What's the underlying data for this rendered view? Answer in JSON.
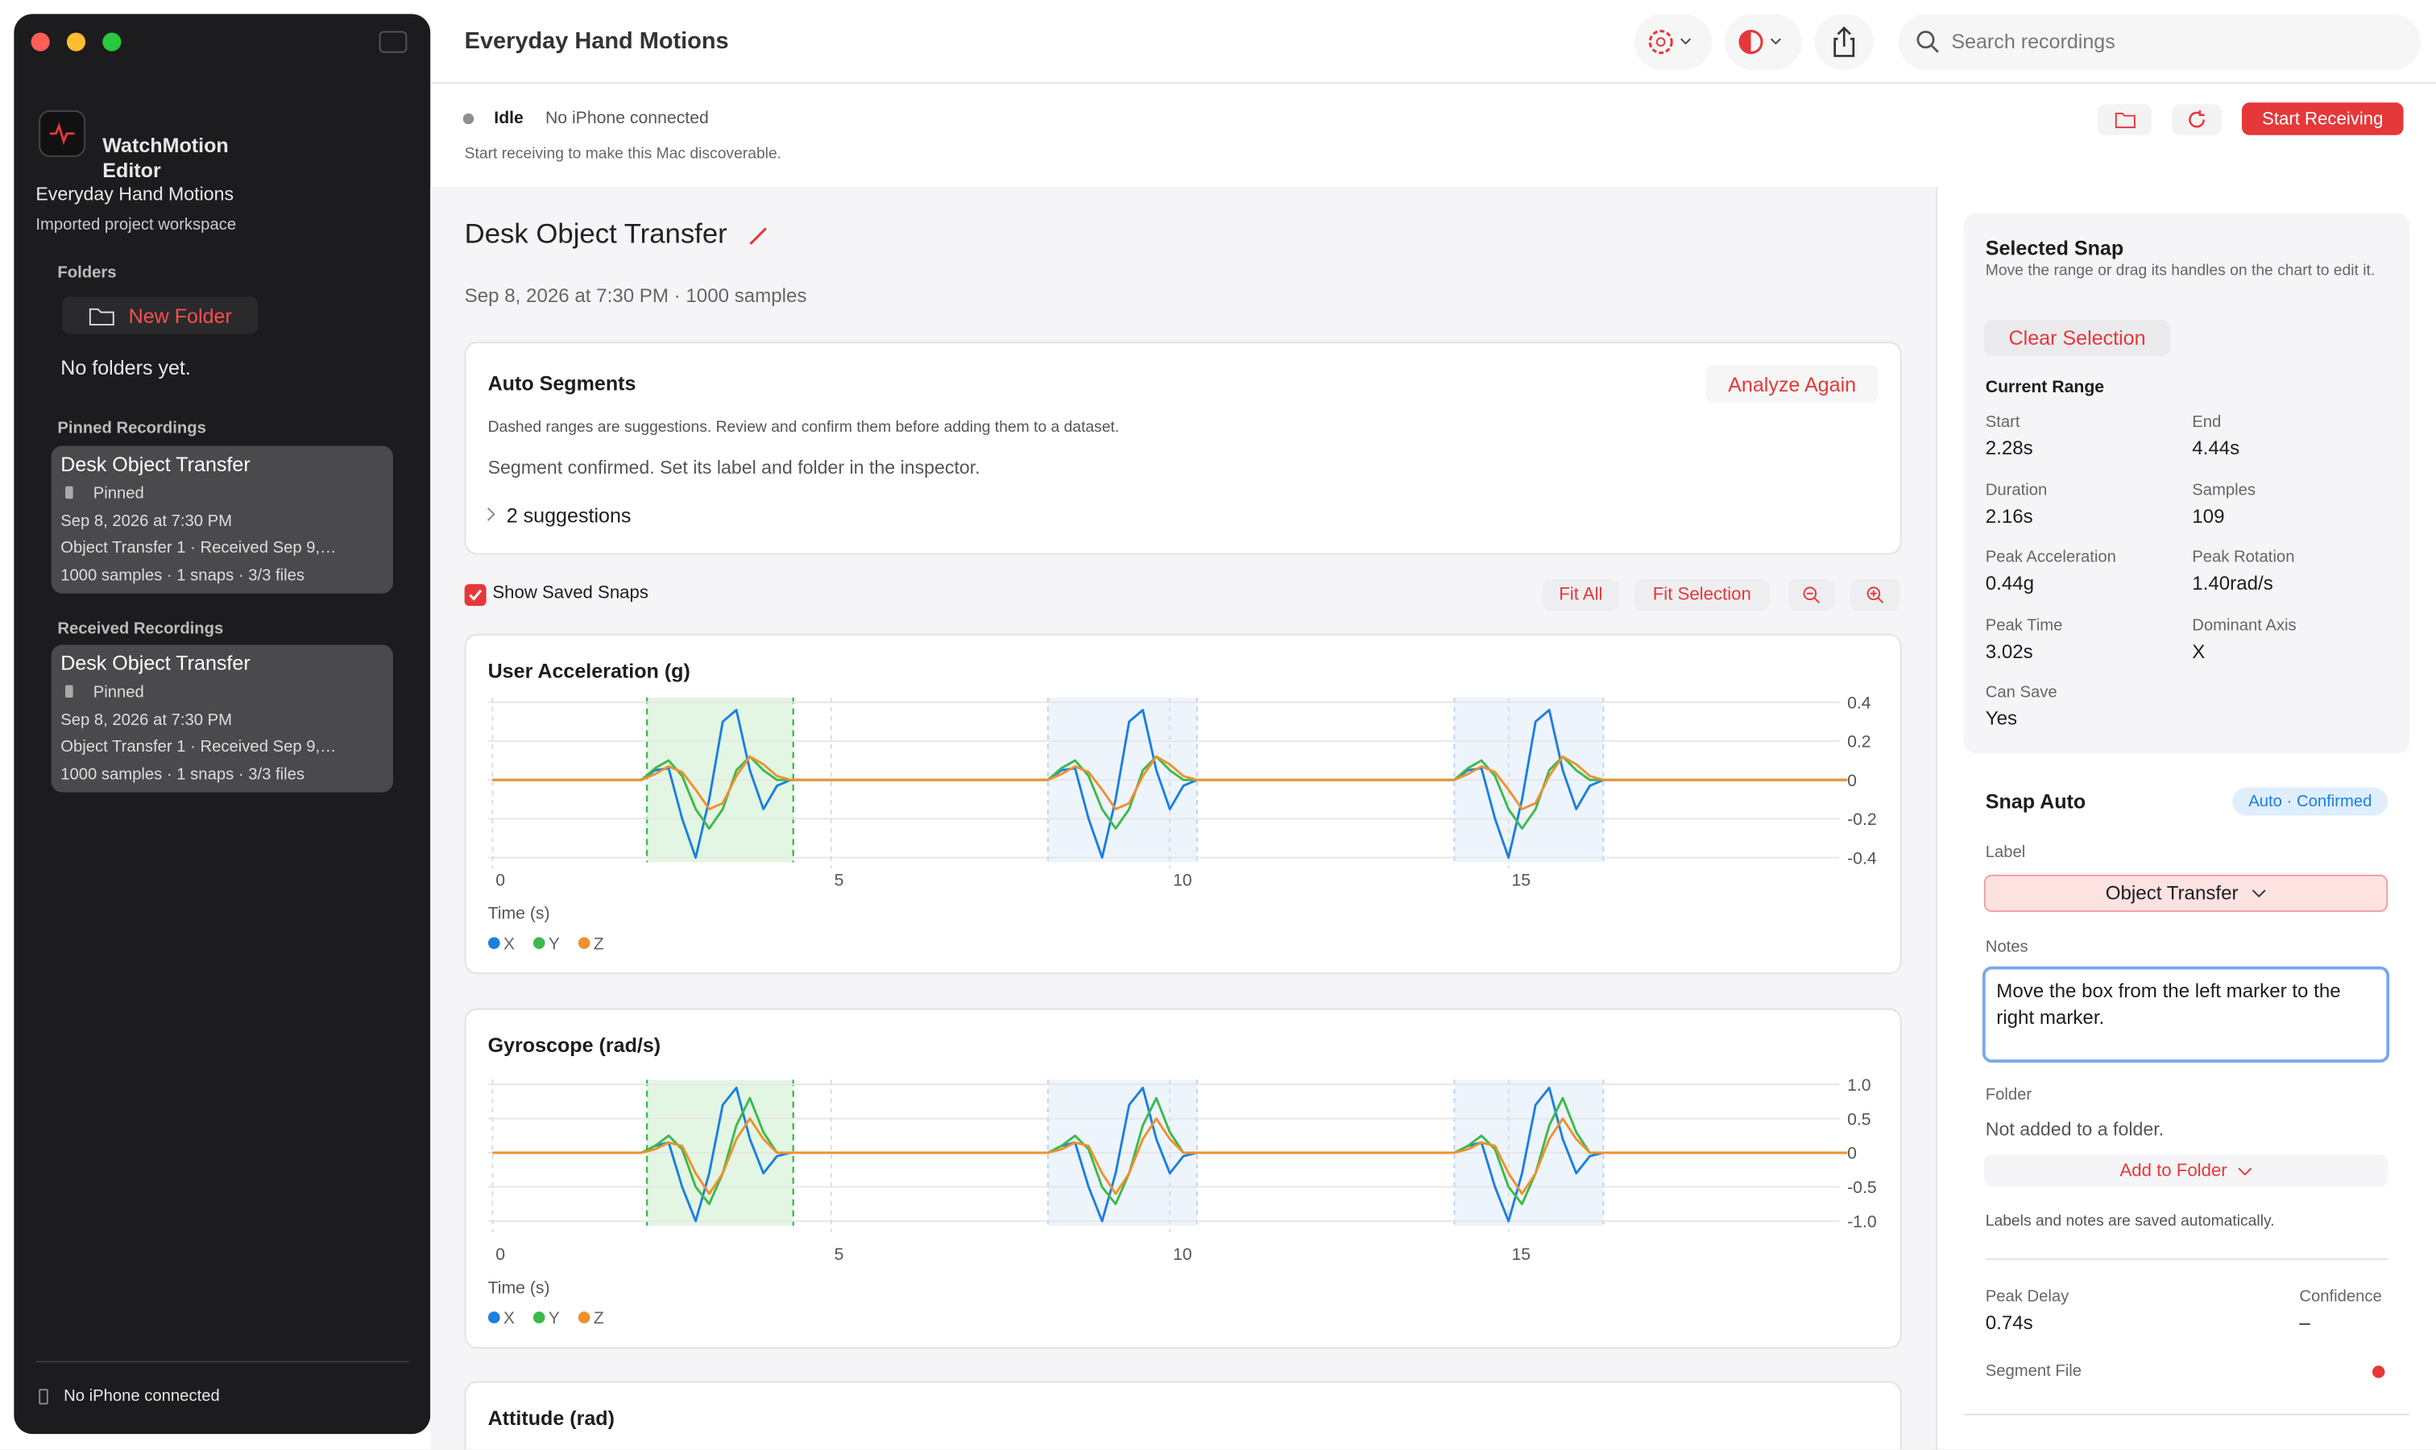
{
  "sidebar": {
    "app_name": "WatchMotion Editor",
    "project": "Everyday Hand Motions",
    "project_subtitle": "Imported project workspace",
    "folders_heading": "Folders",
    "new_folder": "New Folder",
    "no_folders": "No folders yet.",
    "pinned_heading": "Pinned Recordings",
    "pinned": [
      {
        "title": "Desk Object Transfer",
        "status": "Pinned",
        "date": "Sep 8, 2026 at 7:30 PM",
        "detail": "Object Transfer 1 · Received Sep 9,…",
        "stats": "1000 samples · 1 snaps · 3/3 files"
      }
    ],
    "received_heading": "Received Recordings",
    "received": [
      {
        "title": "Desk Object Transfer",
        "status": "Pinned",
        "date": "Sep 8, 2026 at 7:30 PM",
        "detail": "Object Transfer 1 · Received Sep 9,…",
        "stats": "1000 samples · 1 snaps · 3/3 files"
      }
    ],
    "footer": "No iPhone connected"
  },
  "toolbar": {
    "title": "Everyday Hand Motions",
    "search_placeholder": "Search recordings"
  },
  "status": {
    "state": "Idle",
    "connection": "No iPhone connected",
    "hint": "Start receiving to make this Mac discoverable.",
    "start_button": "Start Receiving"
  },
  "recording": {
    "title": "Desk Object Transfer",
    "meta": "Sep 8, 2026 at 7:30 PM · 1000 samples"
  },
  "auto_segments": {
    "title": "Auto Segments",
    "button": "Analyze Again",
    "description": "Dashed ranges are suggestions. Review and confirm them before adding them to a dataset.",
    "status": "Segment confirmed. Set its label and folder in the inspector.",
    "suggestions": "2 suggestions"
  },
  "chart_controls": {
    "show_saved": "Show Saved Snaps",
    "fit_all": "Fit All",
    "fit_selection": "Fit Selection"
  },
  "chart_data": [
    {
      "type": "line",
      "title": "User Acceleration (g)",
      "x_label": "Time (s)",
      "xlim": [
        0,
        20
      ],
      "xticks": [
        0,
        5,
        10,
        15
      ],
      "ylim": [
        -0.4,
        0.4
      ],
      "yticks": [
        0.4,
        0.2,
        0,
        -0.2,
        -0.4
      ],
      "grid": true,
      "selection": [
        2.28,
        4.44
      ],
      "suggestions": [
        [
          8.2,
          10.4
        ],
        [
          14.2,
          16.4
        ]
      ],
      "x": [
        0,
        2.2,
        2.4,
        2.6,
        2.8,
        3,
        3.2,
        3.4,
        3.6,
        3.8,
        4,
        4.2,
        4.4,
        8.2,
        8.4,
        8.6,
        8.8,
        9,
        9.2,
        9.4,
        9.6,
        9.8,
        10,
        10.2,
        10.4,
        14.2,
        14.4,
        14.6,
        14.8,
        15,
        15.2,
        15.4,
        15.6,
        15.8,
        16,
        16.2,
        16.4,
        20
      ],
      "series": [
        {
          "name": "X",
          "color": "#1a7fe0",
          "values": [
            0,
            0,
            0.05,
            0.06,
            -0.2,
            -0.4,
            -0.1,
            0.3,
            0.36,
            0.05,
            -0.15,
            -0.03,
            0,
            0,
            0.05,
            0.06,
            -0.2,
            -0.4,
            -0.1,
            0.3,
            0.36,
            0.05,
            -0.15,
            -0.03,
            0,
            0,
            0.05,
            0.06,
            -0.2,
            -0.4,
            -0.1,
            0.3,
            0.36,
            0.05,
            -0.15,
            -0.03,
            0,
            0
          ]
        },
        {
          "name": "Y",
          "color": "#3cba4c",
          "values": [
            0,
            0,
            0.06,
            0.1,
            0.02,
            -0.15,
            -0.25,
            -0.15,
            0.05,
            0.12,
            0.05,
            0,
            0,
            0,
            0.06,
            0.1,
            0.02,
            -0.15,
            -0.25,
            -0.15,
            0.05,
            0.12,
            0.05,
            0,
            0,
            0,
            0.06,
            0.1,
            0.02,
            -0.15,
            -0.25,
            -0.15,
            0.05,
            0.12,
            0.05,
            0,
            0,
            0
          ]
        },
        {
          "name": "Z",
          "color": "#f0902e",
          "values": [
            0,
            0,
            0.03,
            0.07,
            0.04,
            -0.05,
            -0.15,
            -0.12,
            0.02,
            0.12,
            0.08,
            0.02,
            0,
            0,
            0.03,
            0.07,
            0.04,
            -0.05,
            -0.15,
            -0.12,
            0.02,
            0.12,
            0.08,
            0.02,
            0,
            0,
            0.03,
            0.07,
            0.04,
            -0.05,
            -0.15,
            -0.12,
            0.02,
            0.12,
            0.08,
            0.02,
            0,
            0
          ]
        }
      ]
    },
    {
      "type": "line",
      "title": "Gyroscope (rad/s)",
      "x_label": "Time (s)",
      "xlim": [
        0,
        20
      ],
      "xticks": [
        0,
        5,
        10,
        15
      ],
      "ylim": [
        -1,
        1
      ],
      "yticks": [
        {
          "value": 1,
          "label": "1.0"
        },
        0.5,
        0,
        -0.5,
        {
          "value": -1,
          "label": "-1.0"
        }
      ],
      "grid": true,
      "selection": [
        2.28,
        4.44
      ],
      "suggestions": [
        [
          8.2,
          10.4
        ],
        [
          14.2,
          16.4
        ]
      ],
      "x": [
        0,
        2.2,
        2.4,
        2.6,
        2.8,
        3,
        3.2,
        3.4,
        3.6,
        3.8,
        4,
        4.2,
        4.4,
        8.2,
        8.4,
        8.6,
        8.8,
        9,
        9.2,
        9.4,
        9.6,
        9.8,
        10,
        10.2,
        10.4,
        14.2,
        14.4,
        14.6,
        14.8,
        15,
        15.2,
        15.4,
        15.6,
        15.8,
        16,
        16.2,
        16.4,
        20
      ],
      "series": [
        {
          "name": "X",
          "color": "#1a7fe0",
          "values": [
            0,
            0,
            0.1,
            0.15,
            -0.5,
            -1,
            -0.3,
            0.7,
            0.95,
            0.2,
            -0.3,
            -0.05,
            0,
            0,
            0.1,
            0.15,
            -0.5,
            -1,
            -0.3,
            0.7,
            0.95,
            0.2,
            -0.3,
            -0.05,
            0,
            0,
            0.1,
            0.15,
            -0.5,
            -1,
            -0.3,
            0.7,
            0.95,
            0.2,
            -0.3,
            -0.05,
            0,
            0
          ]
        },
        {
          "name": "Y",
          "color": "#3cba4c",
          "values": [
            0,
            0,
            0.1,
            0.25,
            0.05,
            -0.5,
            -0.75,
            -0.3,
            0.4,
            0.8,
            0.3,
            0,
            0,
            0,
            0.1,
            0.25,
            0.05,
            -0.5,
            -0.75,
            -0.3,
            0.4,
            0.8,
            0.3,
            0,
            0,
            0,
            0.1,
            0.25,
            0.05,
            -0.5,
            -0.75,
            -0.3,
            0.4,
            0.8,
            0.3,
            0,
            0,
            0
          ]
        },
        {
          "name": "Z",
          "color": "#f0902e",
          "values": [
            0,
            0,
            0.05,
            0.15,
            0.1,
            -0.3,
            -0.6,
            -0.3,
            0.2,
            0.5,
            0.2,
            0,
            0,
            0,
            0.05,
            0.15,
            0.1,
            -0.3,
            -0.6,
            -0.3,
            0.2,
            0.5,
            0.2,
            0,
            0,
            0,
            0.05,
            0.15,
            0.1,
            -0.3,
            -0.6,
            -0.3,
            0.2,
            0.5,
            0.2,
            0,
            0,
            0
          ]
        }
      ]
    },
    {
      "type": "line",
      "title": "Attitude (rad)"
    }
  ],
  "inspector": {
    "selected_title": "Selected Snap",
    "selected_hint": "Move the range or drag its handles on the chart to edit it.",
    "clear": "Clear Selection",
    "range_heading": "Current Range",
    "fields": [
      {
        "label": "Start",
        "value": "2.28s"
      },
      {
        "label": "End",
        "value": "4.44s"
      },
      {
        "label": "Duration",
        "value": "2.16s"
      },
      {
        "label": "Samples",
        "value": "109"
      },
      {
        "label": "Peak Acceleration",
        "value": "0.44g"
      },
      {
        "label": "Peak Rotation",
        "value": "1.40rad/s"
      },
      {
        "label": "Peak Time",
        "value": "3.02s"
      },
      {
        "label": "Dominant Axis",
        "value": "X"
      },
      {
        "label": "Can Save",
        "value": "Yes"
      }
    ],
    "snap_title": "Snap Auto",
    "badge": "Auto · Confirmed",
    "label_heading": "Label",
    "label_value": "Object Transfer",
    "notes_heading": "Notes",
    "notes": "Move the box from the left marker to the right marker.",
    "folder_heading": "Folder",
    "folder_value": "Not added to a folder.",
    "add_folder": "Add to Folder",
    "autosave": "Labels and notes are saved automatically.",
    "peak_delay_label": "Peak Delay",
    "peak_delay_value": "0.74s",
    "confidence_label": "Confidence",
    "confidence_value": "–",
    "segment_file_label": "Segment File"
  }
}
